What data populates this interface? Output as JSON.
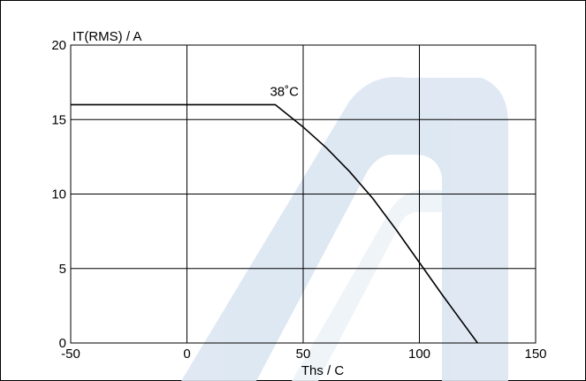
{
  "chart_data": {
    "type": "line",
    "title": "",
    "xlabel": "Ths / C",
    "ylabel": "IT(RMS) / A",
    "xlim": [
      -50,
      150
    ],
    "ylim": [
      0,
      20
    ],
    "x_ticks": [
      -50,
      0,
      50,
      100,
      150
    ],
    "y_ticks": [
      0,
      5,
      10,
      15,
      20
    ],
    "x_tick_labels": [
      "-50",
      "0",
      "50",
      "100",
      "150"
    ],
    "y_tick_labels": [
      "0",
      "5",
      "10",
      "15",
      "20"
    ],
    "grid": true,
    "series": [
      {
        "x": [
          -50,
          38,
          50,
          60,
          70,
          80,
          90,
          100,
          110,
          125
        ],
        "y": [
          16,
          16,
          14.5,
          13.1,
          11.5,
          9.7,
          7.6,
          5.4,
          3.2,
          0
        ],
        "color": "#000000"
      }
    ],
    "annotations": [
      {
        "text": "38˚C",
        "x": 38,
        "y": 16
      }
    ],
    "watermark_color": "#dbe6f2"
  }
}
